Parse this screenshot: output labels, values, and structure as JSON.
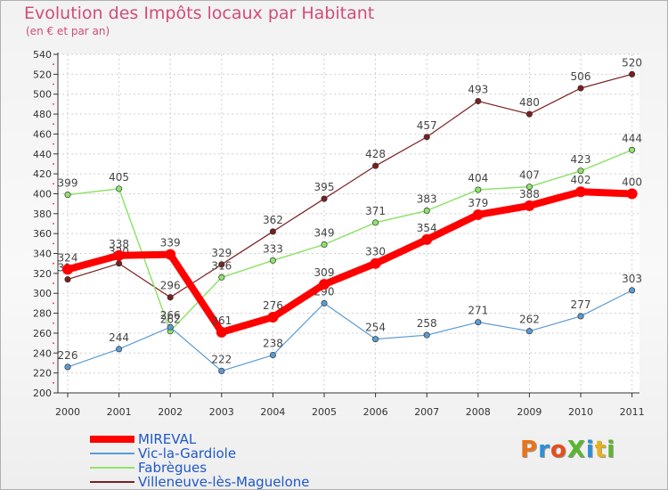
{
  "title": "Evolution des Impôts locaux par Habitant",
  "subtitle": "(en € et par an)",
  "logo_text": "ProXiti",
  "colors": {
    "title": "#d24b7a",
    "legend_text": "#1f58c9",
    "axis": "#333333",
    "grid": "#cfcfcf"
  },
  "chart_data": {
    "type": "line",
    "title": "Evolution des Impôts locaux par Habitant",
    "subtitle": "(en € et par an)",
    "xlabel": "",
    "ylabel": "",
    "ylim": [
      200,
      540
    ],
    "y_ticks": [
      200,
      220,
      240,
      260,
      280,
      300,
      320,
      340,
      360,
      380,
      400,
      420,
      440,
      460,
      480,
      500,
      520,
      540
    ],
    "grid": true,
    "legend_position": "bottom-left",
    "x": [
      "2000",
      "2001",
      "2002",
      "2003",
      "2004",
      "2005",
      "2006",
      "2007",
      "2008",
      "2009",
      "2010",
      "2011"
    ],
    "series": [
      {
        "name": "Villeneuve-lès-Maguelone",
        "color": "#7a1f1f",
        "width": 1.2,
        "values": [
          314,
          330,
          296,
          329,
          362,
          395,
          428,
          457,
          493,
          480,
          506,
          520
        ],
        "labels": [
          "314",
          "330",
          "296",
          "329",
          "362",
          "395",
          "428",
          "457",
          "493",
          "480",
          "506",
          "520"
        ]
      },
      {
        "name": "Fabrègues",
        "color": "#8fe36b",
        "width": 1.5,
        "values": [
          399,
          405,
          262,
          316,
          333,
          349,
          371,
          383,
          404,
          407,
          423,
          444
        ],
        "labels": [
          "399",
          "405",
          "262",
          "316",
          "333",
          "349",
          "371",
          "383",
          "404",
          "407",
          "423",
          "444"
        ]
      },
      {
        "name": "Vic-la-Gardiole",
        "color": "#5b9bd5",
        "width": 1.2,
        "values": [
          226,
          244,
          266,
          222,
          238,
          290,
          254,
          258,
          271,
          262,
          277,
          303
        ],
        "labels": [
          "226",
          "244",
          "266",
          "222",
          "238",
          "290",
          "254",
          "258",
          "271",
          "262",
          "277",
          "303"
        ]
      },
      {
        "name": "MIREVAL",
        "color": "#ff0000",
        "width": 8,
        "values": [
          324,
          338,
          339,
          261,
          276,
          309,
          330,
          354,
          379,
          388,
          402,
          400
        ],
        "labels": [
          "324",
          "338",
          "339",
          "261",
          "276",
          "309",
          "330",
          "354",
          "379",
          "388",
          "402",
          "400"
        ]
      }
    ]
  },
  "legend": [
    {
      "name": "MIREVAL",
      "color": "#ff0000",
      "thickness": 8
    },
    {
      "name": "Vic-la-Gardiole",
      "color": "#5b9bd5",
      "thickness": 2
    },
    {
      "name": "Fabrègues",
      "color": "#8fe36b",
      "thickness": 2
    },
    {
      "name": "Villeneuve-lès-Maguelone",
      "color": "#7a1f1f",
      "thickness": 2
    }
  ]
}
